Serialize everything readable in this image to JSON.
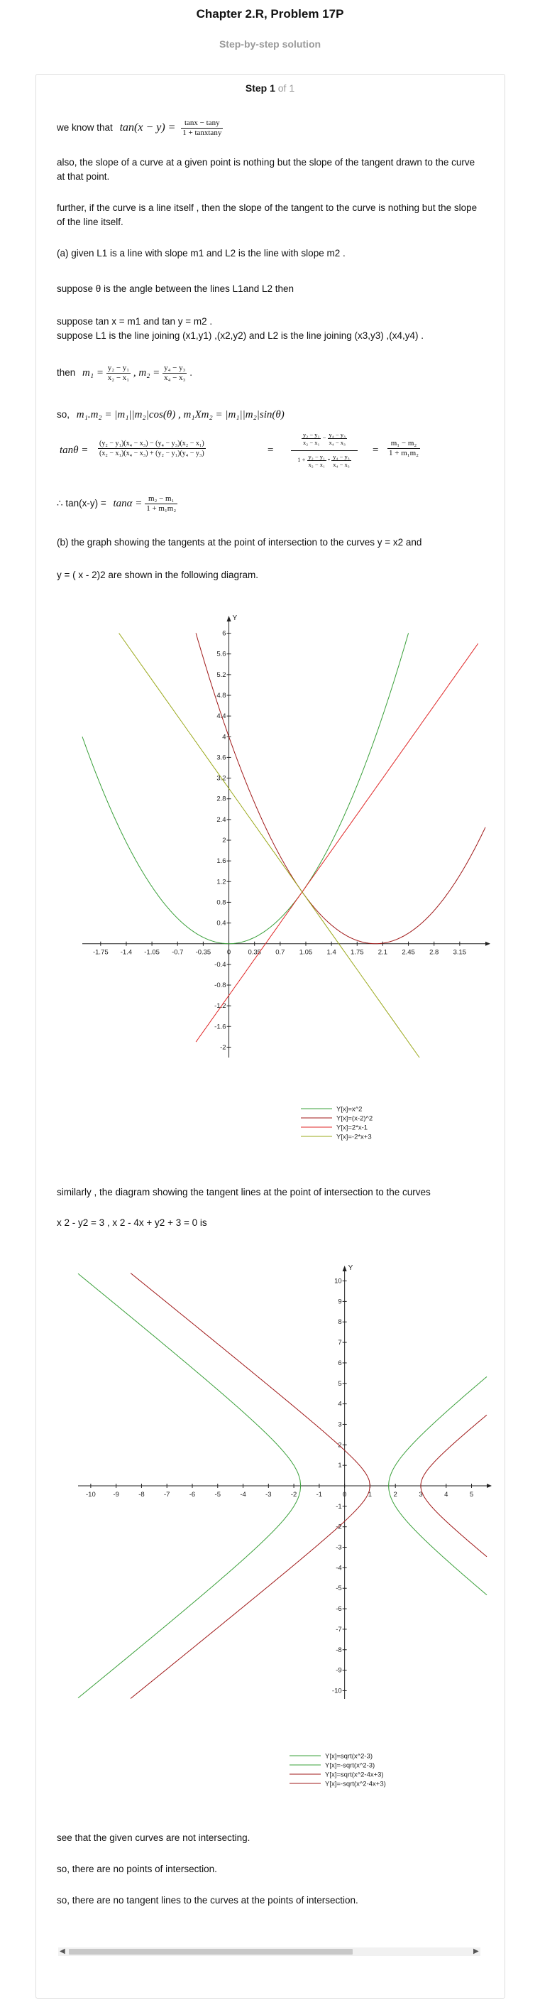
{
  "header": {
    "title": "Chapter 2.R, Problem 17P",
    "subtitle": "Step-by-step solution"
  },
  "step": {
    "label": "Step 1",
    "of": "of 1"
  },
  "body": {
    "p1_prefix": "we know that",
    "p1_lhs": "tan(x − y) =",
    "p1_num": "tanx − tany",
    "p1_den": "1 + tanxtany",
    "p2": "also, the slope of a curve at a given point is nothing but the slope of the tangent drawn to the curve at that point.",
    "p3": "further, if the curve is a line itself , then the slope of the tangent to the curve is nothing but the slope of the line itself.",
    "p4": "(a) given L1 is a line with slope m1 and L2 is the line with slope m2 .",
    "p5": "suppose θ is the angle between the lines L1and L2 then",
    "p6a": "suppose tan x = m1 and tan y = m2 .",
    "p6b": "suppose L1 is the line joining (x1,y1) ,(x2,y2)  and L2 is the line joining (x3,y3) ,(x4,y4) .",
    "p7_prefix": "then",
    "p7_m1": "m₁ =",
    "p7_m1_num": "y₂ − y₁",
    "p7_m1_den": "x₂ − x₁",
    "p7_m2": ",  m₂ =",
    "p7_m2_num": "y₄ − y₃",
    "p7_m2_den": "x₄ − x₃",
    "p7_end": ".",
    "p8_prefix": "so,",
    "p8_expr": "m₁.m₂ = |m₁||m₂|cos(θ)   ,  m₁Xm₂ = |m₁||m₂|sin(θ)",
    "p9_lhs": "tanθ =",
    "p9_num1": "(y₂ − y₁)(x₄ − x₃) − (y₄ − y₃)(x₂ − x₁)",
    "p9_den1": "(x₂ − x₁)(x₄ − x₃) + (y₂ − y₁)(y₄ − y₃)",
    "p9_eq": "=",
    "p9_num2a": "y₂ − y₁",
    "p9_num2b": "x₂ − x₁",
    "p9_minus": "−",
    "p9_num2c": "y₄ − y₃",
    "p9_num2d": "x₄ − x₃",
    "p9_one": "1 +",
    "p9_times": "•",
    "p9_eq2": "=",
    "p9_num3": "m₁ − m₂",
    "p9_den3": "1 + m₁m₂",
    "p10_prefix": "∴ tan(x-y) =",
    "p10_tan": "tanα =",
    "p10_num": "m₂ − m₁",
    "p10_den": "1 + m₁m₂",
    "p11": "(b) the graph showing the tangents at the point of intersection to the curves y = x2 and",
    "p12": "y = ( x - 2)2  are shown in the following diagram.",
    "p13": "similarly , the diagram showing the tangent lines at the point of intersection to the curves",
    "p14": " x 2 - y2 = 3 , x 2 - 4x + y2 + 3 = 0 is",
    "p15": "see that the given curves are not intersecting.",
    "p16": "so, there are no points of intersection.",
    "p17": "so, there are no tangent lines to the curves at the points of intersection."
  },
  "chart_data": [
    {
      "type": "line",
      "axis_label_y": "Y",
      "xlim": [
        -2.0,
        3.5
      ],
      "ylim": [
        -2.2,
        6.2
      ],
      "x_ticks": [
        -1.75,
        -1.4,
        -1.05,
        -0.7,
        -0.35,
        0,
        0.35,
        0.7,
        1.05,
        1.4,
        1.75,
        2.1,
        2.45,
        2.8,
        3.15
      ],
      "x_tick_labels": [
        "-1.75",
        "-1.4",
        "-1.05",
        "-0.7",
        "-0.35",
        "0",
        "0.35",
        "0.7",
        "1.05",
        "1.4",
        "1.75",
        "2.1",
        "2.45",
        "2.8",
        "3.15"
      ],
      "y_ticks": [
        -2,
        -1.6,
        -1.2,
        -0.8,
        -0.4,
        0.4,
        0.8,
        1.2,
        1.6,
        2,
        2.4,
        2.8,
        3.2,
        3.6,
        4,
        4.4,
        4.8,
        5.2,
        5.6,
        6
      ],
      "y_tick_labels": [
        "-2",
        "-1.6",
        "-1.2",
        "-0.8",
        "-0.4",
        "0.4",
        "0.8",
        "1.2",
        "1.6",
        "2",
        "2.4",
        "2.8",
        "3.2",
        "3.6",
        "4",
        "4.4",
        "4.8",
        "5.2",
        "5.6",
        "6"
      ],
      "legend_position": "bottom-right",
      "series": [
        {
          "name": "Y[x]=x^2",
          "color": "#3aa03a",
          "expr": "x*x",
          "x_range": [
            -2.0,
            2.45
          ]
        },
        {
          "name": "Y[x]=(x-2)^2",
          "color": "#a01818",
          "expr": "(x-2)*(x-2)",
          "x_range": [
            -0.45,
            3.5
          ]
        },
        {
          "name": "Y[x]=2*x-1",
          "color": "#e02828",
          "expr": "2*x-1",
          "x_range": [
            -0.45,
            3.4
          ]
        },
        {
          "name": "Y[x]=-2*x+3",
          "color": "#9aa81a",
          "expr": "-2*x+3",
          "x_range": [
            -1.5,
            2.6
          ]
        }
      ]
    },
    {
      "type": "line",
      "axis_label_y": "Y",
      "xlim": [
        -10.5,
        5.6
      ],
      "ylim": [
        -10.4,
        10.4
      ],
      "x_ticks": [
        -10,
        -9,
        -8,
        -7,
        -6,
        -5,
        -4,
        -3,
        -2,
        -1,
        0,
        1,
        2,
        3,
        4,
        5
      ],
      "x_tick_labels": [
        "-10",
        "-9",
        "-8",
        "-7",
        "-6",
        "-5",
        "-4",
        "-3",
        "-2",
        "-1",
        "0",
        "1",
        "2",
        "3",
        "4",
        "5"
      ],
      "y_ticks": [
        -10,
        -9,
        -8,
        -7,
        -6,
        -5,
        -4,
        -3,
        -2,
        -1,
        1,
        2,
        3,
        4,
        5,
        6,
        7,
        8,
        9,
        10
      ],
      "y_tick_labels": [
        "-10",
        "-9",
        "-8",
        "-7",
        "-6",
        "-5",
        "-4",
        "-3",
        "-2",
        "-1",
        "1",
        "2",
        "3",
        "4",
        "5",
        "6",
        "7",
        "8",
        "9",
        "10"
      ],
      "legend_position": "bottom-right",
      "series": [
        {
          "name": "Y[x]=sqrt(x^2-3)",
          "color": "#3aa03a",
          "curve": "hyperbola",
          "sign": 1
        },
        {
          "name": "Y[x]=-sqrt(x^2-3)",
          "color": "#3aa03a",
          "curve": "hyperbola",
          "sign": -1
        },
        {
          "name": "Y[x]=sqrt(x^2-4x+3)",
          "color": "#a01818",
          "curve": "hyperbola2",
          "sign": 1
        },
        {
          "name": "Y[x]=-sqrt(x^2-4x+3)",
          "color": "#a01818",
          "curve": "hyperbola2",
          "sign": -1
        }
      ]
    }
  ]
}
